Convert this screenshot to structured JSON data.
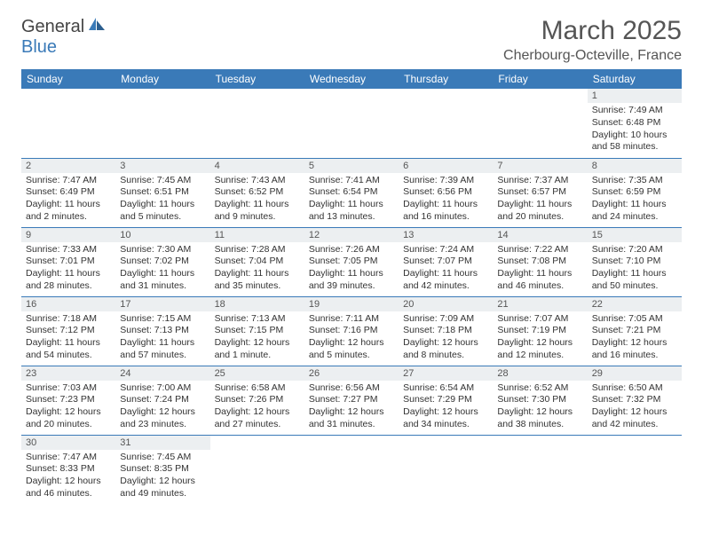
{
  "logo": {
    "text1": "General",
    "text2": "Blue"
  },
  "month_title": "March 2025",
  "location": "Cherbourg-Octeville, France",
  "colors": {
    "header_bg": "#3a7ab8",
    "header_fg": "#ffffff",
    "daynum_bg": "#eceff1",
    "border": "#3a7ab8",
    "text": "#333333"
  },
  "weekdays": [
    "Sunday",
    "Monday",
    "Tuesday",
    "Wednesday",
    "Thursday",
    "Friday",
    "Saturday"
  ],
  "weeks": [
    [
      null,
      null,
      null,
      null,
      null,
      null,
      {
        "d": "1",
        "sr": "Sunrise: 7:49 AM",
        "ss": "Sunset: 6:48 PM",
        "dl": "Daylight: 10 hours and 58 minutes."
      }
    ],
    [
      {
        "d": "2",
        "sr": "Sunrise: 7:47 AM",
        "ss": "Sunset: 6:49 PM",
        "dl": "Daylight: 11 hours and 2 minutes."
      },
      {
        "d": "3",
        "sr": "Sunrise: 7:45 AM",
        "ss": "Sunset: 6:51 PM",
        "dl": "Daylight: 11 hours and 5 minutes."
      },
      {
        "d": "4",
        "sr": "Sunrise: 7:43 AM",
        "ss": "Sunset: 6:52 PM",
        "dl": "Daylight: 11 hours and 9 minutes."
      },
      {
        "d": "5",
        "sr": "Sunrise: 7:41 AM",
        "ss": "Sunset: 6:54 PM",
        "dl": "Daylight: 11 hours and 13 minutes."
      },
      {
        "d": "6",
        "sr": "Sunrise: 7:39 AM",
        "ss": "Sunset: 6:56 PM",
        "dl": "Daylight: 11 hours and 16 minutes."
      },
      {
        "d": "7",
        "sr": "Sunrise: 7:37 AM",
        "ss": "Sunset: 6:57 PM",
        "dl": "Daylight: 11 hours and 20 minutes."
      },
      {
        "d": "8",
        "sr": "Sunrise: 7:35 AM",
        "ss": "Sunset: 6:59 PM",
        "dl": "Daylight: 11 hours and 24 minutes."
      }
    ],
    [
      {
        "d": "9",
        "sr": "Sunrise: 7:33 AM",
        "ss": "Sunset: 7:01 PM",
        "dl": "Daylight: 11 hours and 28 minutes."
      },
      {
        "d": "10",
        "sr": "Sunrise: 7:30 AM",
        "ss": "Sunset: 7:02 PM",
        "dl": "Daylight: 11 hours and 31 minutes."
      },
      {
        "d": "11",
        "sr": "Sunrise: 7:28 AM",
        "ss": "Sunset: 7:04 PM",
        "dl": "Daylight: 11 hours and 35 minutes."
      },
      {
        "d": "12",
        "sr": "Sunrise: 7:26 AM",
        "ss": "Sunset: 7:05 PM",
        "dl": "Daylight: 11 hours and 39 minutes."
      },
      {
        "d": "13",
        "sr": "Sunrise: 7:24 AM",
        "ss": "Sunset: 7:07 PM",
        "dl": "Daylight: 11 hours and 42 minutes."
      },
      {
        "d": "14",
        "sr": "Sunrise: 7:22 AM",
        "ss": "Sunset: 7:08 PM",
        "dl": "Daylight: 11 hours and 46 minutes."
      },
      {
        "d": "15",
        "sr": "Sunrise: 7:20 AM",
        "ss": "Sunset: 7:10 PM",
        "dl": "Daylight: 11 hours and 50 minutes."
      }
    ],
    [
      {
        "d": "16",
        "sr": "Sunrise: 7:18 AM",
        "ss": "Sunset: 7:12 PM",
        "dl": "Daylight: 11 hours and 54 minutes."
      },
      {
        "d": "17",
        "sr": "Sunrise: 7:15 AM",
        "ss": "Sunset: 7:13 PM",
        "dl": "Daylight: 11 hours and 57 minutes."
      },
      {
        "d": "18",
        "sr": "Sunrise: 7:13 AM",
        "ss": "Sunset: 7:15 PM",
        "dl": "Daylight: 12 hours and 1 minute."
      },
      {
        "d": "19",
        "sr": "Sunrise: 7:11 AM",
        "ss": "Sunset: 7:16 PM",
        "dl": "Daylight: 12 hours and 5 minutes."
      },
      {
        "d": "20",
        "sr": "Sunrise: 7:09 AM",
        "ss": "Sunset: 7:18 PM",
        "dl": "Daylight: 12 hours and 8 minutes."
      },
      {
        "d": "21",
        "sr": "Sunrise: 7:07 AM",
        "ss": "Sunset: 7:19 PM",
        "dl": "Daylight: 12 hours and 12 minutes."
      },
      {
        "d": "22",
        "sr": "Sunrise: 7:05 AM",
        "ss": "Sunset: 7:21 PM",
        "dl": "Daylight: 12 hours and 16 minutes."
      }
    ],
    [
      {
        "d": "23",
        "sr": "Sunrise: 7:03 AM",
        "ss": "Sunset: 7:23 PM",
        "dl": "Daylight: 12 hours and 20 minutes."
      },
      {
        "d": "24",
        "sr": "Sunrise: 7:00 AM",
        "ss": "Sunset: 7:24 PM",
        "dl": "Daylight: 12 hours and 23 minutes."
      },
      {
        "d": "25",
        "sr": "Sunrise: 6:58 AM",
        "ss": "Sunset: 7:26 PM",
        "dl": "Daylight: 12 hours and 27 minutes."
      },
      {
        "d": "26",
        "sr": "Sunrise: 6:56 AM",
        "ss": "Sunset: 7:27 PM",
        "dl": "Daylight: 12 hours and 31 minutes."
      },
      {
        "d": "27",
        "sr": "Sunrise: 6:54 AM",
        "ss": "Sunset: 7:29 PM",
        "dl": "Daylight: 12 hours and 34 minutes."
      },
      {
        "d": "28",
        "sr": "Sunrise: 6:52 AM",
        "ss": "Sunset: 7:30 PM",
        "dl": "Daylight: 12 hours and 38 minutes."
      },
      {
        "d": "29",
        "sr": "Sunrise: 6:50 AM",
        "ss": "Sunset: 7:32 PM",
        "dl": "Daylight: 12 hours and 42 minutes."
      }
    ],
    [
      {
        "d": "30",
        "sr": "Sunrise: 7:47 AM",
        "ss": "Sunset: 8:33 PM",
        "dl": "Daylight: 12 hours and 46 minutes."
      },
      {
        "d": "31",
        "sr": "Sunrise: 7:45 AM",
        "ss": "Sunset: 8:35 PM",
        "dl": "Daylight: 12 hours and 49 minutes."
      },
      null,
      null,
      null,
      null,
      null
    ]
  ]
}
